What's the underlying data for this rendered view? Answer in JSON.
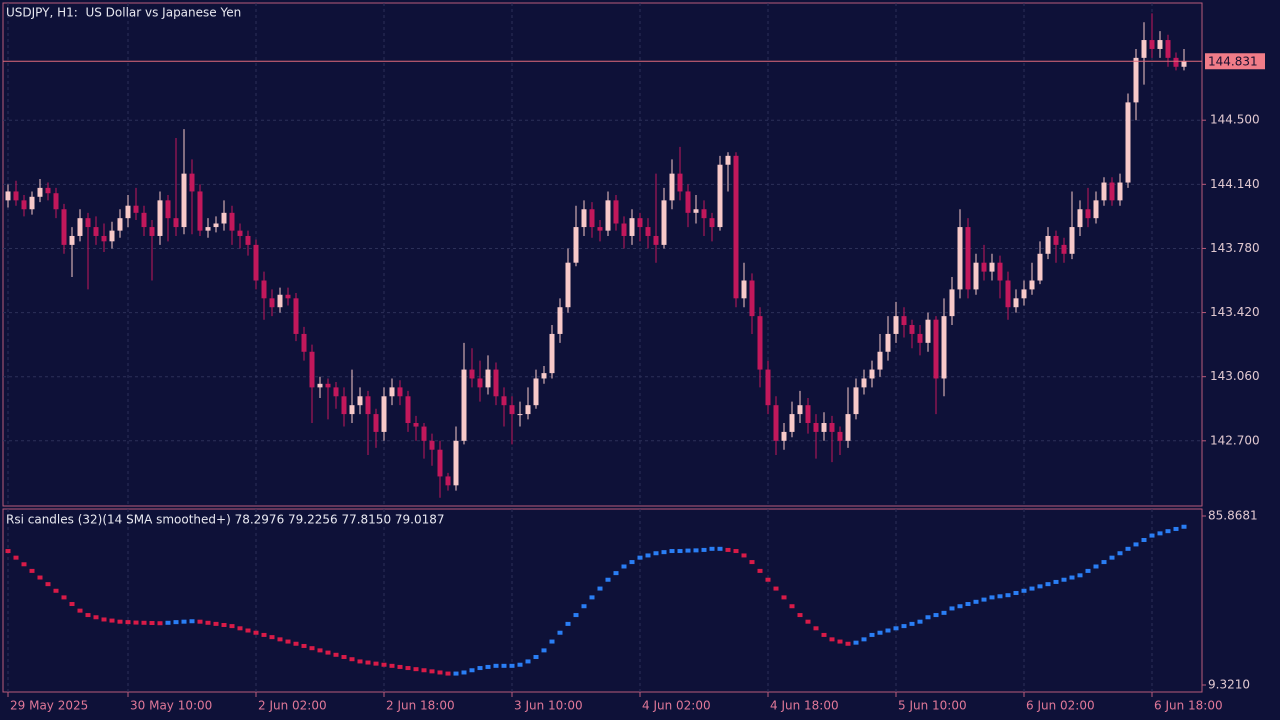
{
  "chart_data": {
    "type": "candlestick",
    "title": "USDJPY, H1:  US Dollar vs Japanese Yen",
    "up_color": "#f7c9c9",
    "down_color": "#c2185b",
    "grid": true,
    "ylim": [
      142.334,
      145.158
    ],
    "yticks": [
      {
        "value": 144.5,
        "label": "144.500"
      },
      {
        "value": 144.14,
        "label": "144.140"
      },
      {
        "value": 143.78,
        "label": "143.780"
      },
      {
        "value": 143.42,
        "label": "143.420"
      },
      {
        "value": 143.06,
        "label": "143.060"
      },
      {
        "value": 142.7,
        "label": "142.700"
      }
    ],
    "current_price": {
      "value": 144.831,
      "label": "144.831"
    },
    "categories": [
      "29 May 2025",
      null,
      null,
      null,
      null,
      null,
      null,
      null,
      null,
      null,
      null,
      null,
      null,
      null,
      null,
      "30 May 10:00",
      null,
      null,
      null,
      null,
      null,
      null,
      null,
      null,
      null,
      null,
      null,
      null,
      null,
      null,
      null,
      "2 Jun 02:00",
      null,
      null,
      null,
      null,
      null,
      null,
      null,
      null,
      null,
      null,
      null,
      null,
      null,
      null,
      null,
      "2 Jun 18:00",
      null,
      null,
      null,
      null,
      null,
      null,
      null,
      null,
      null,
      null,
      null,
      null,
      null,
      null,
      null,
      "3 Jun 10:00",
      null,
      null,
      null,
      null,
      null,
      null,
      null,
      null,
      null,
      null,
      null,
      null,
      null,
      null,
      null,
      "4 Jun 02:00",
      null,
      null,
      null,
      null,
      null,
      null,
      null,
      null,
      null,
      null,
      null,
      null,
      null,
      null,
      null,
      "4 Jun 18:00",
      null,
      null,
      null,
      null,
      null,
      null,
      null,
      null,
      null,
      null,
      null,
      null,
      null,
      null,
      null,
      "5 Jun 10:00",
      null,
      null,
      null,
      null,
      null,
      null,
      null,
      null,
      null,
      null,
      null,
      null,
      null,
      null,
      null,
      "6 Jun 02:00",
      null,
      null,
      null,
      null,
      null,
      null,
      null,
      null,
      null,
      null,
      null,
      null,
      null,
      null,
      null,
      "6 Jun 18:00",
      null,
      null,
      null,
      null
    ],
    "candles": [
      [
        144.05,
        144.14,
        144.01,
        144.1
      ],
      [
        144.1,
        144.16,
        144.02,
        144.05
      ],
      [
        144.05,
        144.08,
        143.96,
        144.0
      ],
      [
        144.0,
        144.1,
        143.97,
        144.07
      ],
      [
        144.07,
        144.17,
        144.04,
        144.12
      ],
      [
        144.12,
        144.15,
        144.05,
        144.09
      ],
      [
        144.09,
        144.12,
        143.95,
        144.0
      ],
      [
        144.0,
        144.03,
        143.75,
        143.8
      ],
      [
        143.8,
        143.9,
        143.62,
        143.85
      ],
      [
        143.85,
        144.0,
        143.82,
        143.95
      ],
      [
        143.95,
        143.98,
        143.55,
        143.9
      ],
      [
        143.9,
        143.96,
        143.8,
        143.85
      ],
      [
        143.85,
        143.92,
        143.76,
        143.82
      ],
      [
        143.82,
        143.93,
        143.78,
        143.88
      ],
      [
        143.88,
        144.0,
        143.84,
        143.95
      ],
      [
        143.95,
        144.08,
        143.9,
        144.02
      ],
      [
        144.02,
        144.12,
        143.94,
        143.98
      ],
      [
        143.98,
        144.02,
        143.85,
        143.9
      ],
      [
        143.9,
        143.94,
        143.6,
        143.85
      ],
      [
        143.85,
        144.1,
        143.8,
        144.05
      ],
      [
        144.05,
        144.08,
        143.82,
        143.95
      ],
      [
        143.95,
        144.4,
        143.85,
        143.9
      ],
      [
        143.9,
        144.45,
        143.86,
        144.2
      ],
      [
        144.2,
        144.28,
        143.86,
        144.1
      ],
      [
        144.1,
        144.14,
        143.85,
        143.88
      ],
      [
        143.88,
        143.95,
        143.84,
        143.9
      ],
      [
        143.9,
        143.96,
        143.87,
        143.92
      ],
      [
        143.92,
        144.05,
        143.88,
        143.98
      ],
      [
        143.98,
        144.02,
        143.8,
        143.88
      ],
      [
        143.88,
        143.92,
        143.78,
        143.85
      ],
      [
        143.85,
        143.88,
        143.74,
        143.8
      ],
      [
        143.8,
        143.83,
        143.55,
        143.6
      ],
      [
        143.6,
        143.65,
        143.38,
        143.5
      ],
      [
        143.5,
        143.55,
        143.4,
        143.45
      ],
      [
        143.45,
        143.56,
        143.42,
        143.52
      ],
      [
        143.52,
        143.56,
        143.46,
        143.5
      ],
      [
        143.5,
        143.53,
        143.26,
        143.3
      ],
      [
        143.3,
        143.34,
        143.15,
        143.2
      ],
      [
        143.2,
        143.24,
        142.8,
        143.0
      ],
      [
        143.0,
        143.06,
        142.94,
        143.02
      ],
      [
        143.02,
        143.05,
        142.82,
        143.0
      ],
      [
        143.0,
        143.03,
        142.88,
        142.95
      ],
      [
        142.95,
        143.0,
        142.78,
        142.85
      ],
      [
        142.85,
        143.1,
        142.8,
        142.9
      ],
      [
        142.9,
        143.0,
        142.85,
        142.95
      ],
      [
        142.95,
        142.98,
        142.62,
        142.85
      ],
      [
        142.85,
        142.88,
        142.66,
        142.75
      ],
      [
        142.75,
        143.0,
        142.7,
        142.95
      ],
      [
        142.95,
        143.05,
        142.9,
        143.0
      ],
      [
        143.0,
        143.04,
        142.9,
        142.95
      ],
      [
        142.95,
        142.98,
        142.75,
        142.8
      ],
      [
        142.8,
        142.84,
        142.7,
        142.78
      ],
      [
        142.78,
        142.8,
        142.6,
        142.7
      ],
      [
        142.7,
        142.74,
        142.56,
        142.65
      ],
      [
        142.65,
        142.7,
        142.38,
        142.5
      ],
      [
        142.5,
        142.52,
        142.42,
        142.45
      ],
      [
        142.45,
        142.78,
        142.42,
        142.7
      ],
      [
        142.7,
        143.25,
        142.68,
        143.1
      ],
      [
        143.1,
        143.22,
        143.0,
        143.05
      ],
      [
        143.05,
        143.15,
        142.92,
        143.0
      ],
      [
        143.0,
        143.18,
        142.96,
        143.1
      ],
      [
        143.1,
        143.14,
        142.9,
        142.95
      ],
      [
        142.95,
        143.0,
        142.78,
        142.9
      ],
      [
        142.9,
        142.95,
        142.68,
        142.85
      ],
      [
        142.85,
        142.92,
        142.78,
        142.85
      ],
      [
        142.85,
        143.0,
        142.82,
        142.9
      ],
      [
        142.9,
        143.1,
        142.88,
        143.05
      ],
      [
        143.05,
        143.12,
        143.02,
        143.08
      ],
      [
        143.08,
        143.35,
        143.05,
        143.3
      ],
      [
        143.3,
        143.5,
        143.25,
        143.45
      ],
      [
        143.45,
        143.78,
        143.42,
        143.7
      ],
      [
        143.7,
        144.02,
        143.68,
        143.9
      ],
      [
        143.9,
        144.05,
        143.85,
        144.0
      ],
      [
        144.0,
        144.04,
        143.84,
        143.9
      ],
      [
        143.9,
        143.94,
        143.82,
        143.88
      ],
      [
        143.88,
        144.1,
        143.85,
        144.05
      ],
      [
        144.05,
        144.08,
        143.88,
        143.92
      ],
      [
        143.92,
        143.96,
        143.78,
        143.85
      ],
      [
        143.85,
        144.0,
        143.8,
        143.95
      ],
      [
        143.95,
        143.98,
        143.82,
        143.9
      ],
      [
        143.9,
        143.95,
        143.78,
        143.85
      ],
      [
        143.85,
        144.2,
        143.7,
        143.8
      ],
      [
        143.8,
        144.12,
        143.78,
        144.05
      ],
      [
        144.05,
        144.28,
        144.0,
        144.2
      ],
      [
        144.2,
        144.35,
        144.05,
        144.1
      ],
      [
        144.1,
        144.14,
        143.9,
        143.98
      ],
      [
        143.98,
        144.08,
        143.92,
        144.0
      ],
      [
        144.0,
        144.05,
        143.85,
        143.95
      ],
      [
        143.95,
        143.98,
        143.82,
        143.9
      ],
      [
        143.9,
        144.3,
        143.88,
        144.25
      ],
      [
        144.25,
        144.32,
        144.1,
        144.3
      ],
      [
        144.3,
        144.32,
        143.45,
        143.5
      ],
      [
        143.5,
        143.7,
        143.45,
        143.6
      ],
      [
        143.6,
        143.64,
        143.3,
        143.4
      ],
      [
        143.4,
        143.45,
        143.0,
        143.1
      ],
      [
        143.1,
        143.15,
        142.85,
        142.9
      ],
      [
        142.9,
        142.95,
        142.62,
        142.7
      ],
      [
        142.7,
        142.8,
        142.65,
        142.75
      ],
      [
        142.75,
        142.92,
        142.72,
        142.85
      ],
      [
        142.85,
        142.98,
        142.8,
        142.9
      ],
      [
        142.9,
        142.94,
        142.74,
        142.8
      ],
      [
        142.8,
        142.85,
        142.6,
        142.75
      ],
      [
        142.75,
        142.86,
        142.7,
        142.8
      ],
      [
        142.8,
        142.84,
        142.58,
        142.75
      ],
      [
        142.75,
        142.78,
        142.62,
        142.7
      ],
      [
        142.7,
        143.0,
        142.66,
        142.85
      ],
      [
        142.85,
        143.05,
        142.82,
        143.0
      ],
      [
        143.0,
        143.1,
        142.96,
        143.05
      ],
      [
        143.05,
        143.15,
        143.0,
        143.1
      ],
      [
        143.1,
        143.3,
        143.06,
        143.2
      ],
      [
        143.2,
        143.4,
        143.15,
        143.3
      ],
      [
        143.3,
        143.48,
        143.25,
        143.4
      ],
      [
        143.4,
        143.45,
        143.28,
        143.35
      ],
      [
        143.35,
        143.38,
        143.22,
        143.3
      ],
      [
        143.3,
        143.35,
        143.18,
        143.25
      ],
      [
        143.25,
        143.42,
        143.2,
        143.38
      ],
      [
        143.38,
        143.4,
        142.85,
        143.05
      ],
      [
        143.05,
        143.5,
        142.95,
        143.4
      ],
      [
        143.4,
        143.62,
        143.35,
        143.55
      ],
      [
        143.55,
        144.0,
        143.5,
        143.9
      ],
      [
        143.9,
        143.95,
        143.5,
        143.55
      ],
      [
        143.55,
        143.75,
        143.52,
        143.7
      ],
      [
        143.7,
        143.8,
        143.6,
        143.65
      ],
      [
        143.65,
        143.75,
        143.6,
        143.7
      ],
      [
        143.7,
        143.74,
        143.5,
        143.6
      ],
      [
        143.6,
        143.65,
        143.38,
        143.45
      ],
      [
        143.45,
        143.55,
        143.42,
        143.5
      ],
      [
        143.5,
        143.6,
        143.46,
        143.55
      ],
      [
        143.55,
        143.7,
        143.52,
        143.6
      ],
      [
        143.6,
        143.82,
        143.58,
        143.75
      ],
      [
        143.75,
        143.9,
        143.72,
        143.85
      ],
      [
        143.85,
        143.88,
        143.7,
        143.8
      ],
      [
        143.8,
        143.84,
        143.7,
        143.75
      ],
      [
        143.75,
        144.1,
        143.72,
        143.9
      ],
      [
        143.9,
        144.05,
        143.85,
        144.0
      ],
      [
        144.0,
        144.12,
        143.9,
        143.95
      ],
      [
        143.95,
        144.1,
        143.92,
        144.05
      ],
      [
        144.05,
        144.18,
        144.02,
        144.15
      ],
      [
        144.15,
        144.18,
        144.02,
        144.05
      ],
      [
        144.05,
        144.2,
        144.02,
        144.15
      ],
      [
        144.15,
        144.65,
        144.12,
        144.6
      ],
      [
        144.6,
        144.9,
        144.5,
        144.85
      ],
      [
        144.85,
        145.05,
        144.7,
        144.95
      ],
      [
        144.95,
        145.1,
        144.85,
        144.9
      ],
      [
        144.9,
        145.0,
        144.85,
        144.95
      ],
      [
        144.95,
        144.98,
        144.8,
        144.85
      ],
      [
        144.85,
        144.88,
        144.78,
        144.8
      ],
      [
        144.8,
        144.9,
        144.78,
        144.83
      ]
    ],
    "rsi_title": "Rsi candles (32)(14 SMA smoothed+) 78.2976 79.2256 77.8150 79.0187",
    "rsi_up_color": "#2a7ef5",
    "rsi_down_color": "#d81b48",
    "rsi_ylim": [
      9.321,
      85.8681
    ],
    "rsi_yticks": [
      {
        "value": 85.8681,
        "label": "85.8681"
      },
      {
        "value": 9.321,
        "label": "9.3210"
      }
    ],
    "rsi": [
      70,
      67,
      64,
      61,
      58,
      55,
      52,
      49,
      46,
      43,
      41,
      40,
      39,
      38.5,
      38,
      37.8,
      37.6,
      37.5,
      37.4,
      37.3,
      37.5,
      37.8,
      38,
      38.2,
      38,
      37.5,
      37,
      36.5,
      36,
      35,
      34,
      33,
      32,
      31,
      30,
      29,
      28,
      27,
      26,
      25,
      24,
      23,
      22,
      21,
      20,
      19.5,
      19,
      18.5,
      18,
      17.5,
      17,
      16.5,
      16,
      15.5,
      15,
      14.5,
      14.5,
      15,
      16,
      17,
      17.5,
      18,
      18,
      18,
      18.5,
      20,
      22,
      25,
      29,
      33,
      37,
      41,
      45,
      49,
      53,
      57,
      60,
      63,
      65,
      67,
      68,
      69,
      69.5,
      70,
      70,
      70.2,
      70.3,
      70.5,
      71,
      71,
      70.5,
      70,
      68,
      65,
      61,
      57,
      53,
      49,
      45,
      41,
      38,
      35,
      32,
      30,
      29,
      28,
      28.5,
      30,
      32,
      33,
      34,
      35,
      36,
      37,
      38,
      40,
      41,
      42,
      44,
      45,
      46,
      47,
      48,
      49,
      49.5,
      50,
      51,
      52,
      53,
      54,
      55,
      56,
      57,
      58,
      59,
      61,
      63,
      65,
      67,
      69,
      71,
      73,
      75,
      77,
      78,
      79,
      80,
      81
    ]
  }
}
